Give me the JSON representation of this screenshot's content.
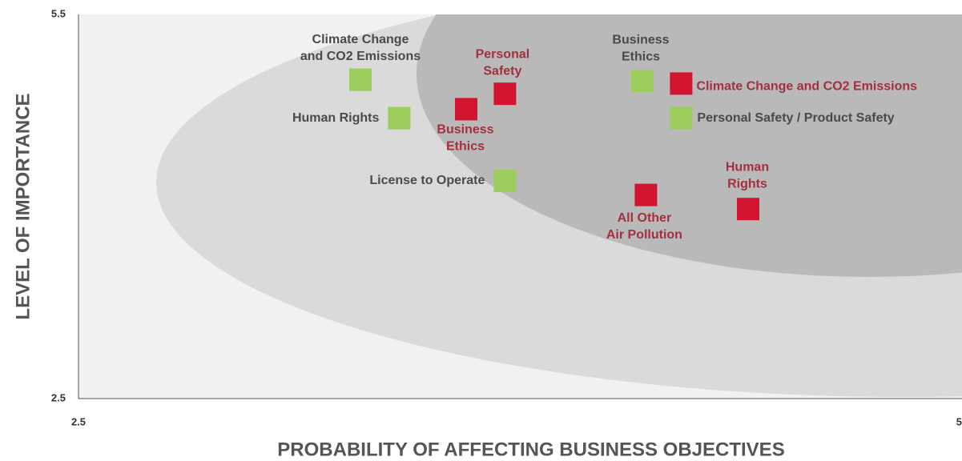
{
  "chart_data": {
    "type": "scatter",
    "xlabel": "PROBABILITY OF AFFECTING BUSINESS OBJECTIVES",
    "ylabel": "LEVEL OF IMPORTANCE",
    "xlim": [
      2.5,
      5
    ],
    "xticks": [
      2.5,
      5
    ],
    "ylim": [
      2.5,
      5.5
    ],
    "yticks": [
      2.5,
      5.5
    ],
    "series": [
      {
        "color": "#9ccd5c",
        "label_color": "#4a4a4a",
        "x": [
          3.3,
          3.41,
          3.71,
          4.1,
          4.21
        ],
        "values": [
          4.99,
          4.69,
          4.2,
          4.98,
          4.69
        ],
        "labels": [
          [
            "Climate Change",
            "and CO2 Emissions"
          ],
          [
            "Human Rights"
          ],
          [
            "License to Operate"
          ],
          [
            "Business",
            "Ethics"
          ],
          [
            "Personal  Safety / Product Safety"
          ]
        ]
      },
      {
        "color": "#d2152e",
        "label_color": "#a3303e",
        "x": [
          3.71,
          3.6,
          4.21,
          4.11,
          4.4
        ],
        "values": [
          4.88,
          4.76,
          4.96,
          4.09,
          3.98
        ],
        "labels": [
          [
            "Personal",
            "Safety"
          ],
          [
            "Business",
            "Ethics"
          ],
          [
            "Climate Change and CO2 Emissions"
          ],
          [
            "All Other",
            "Air Pollution"
          ],
          [
            "Human",
            "Rights"
          ]
        ]
      }
    ]
  }
}
